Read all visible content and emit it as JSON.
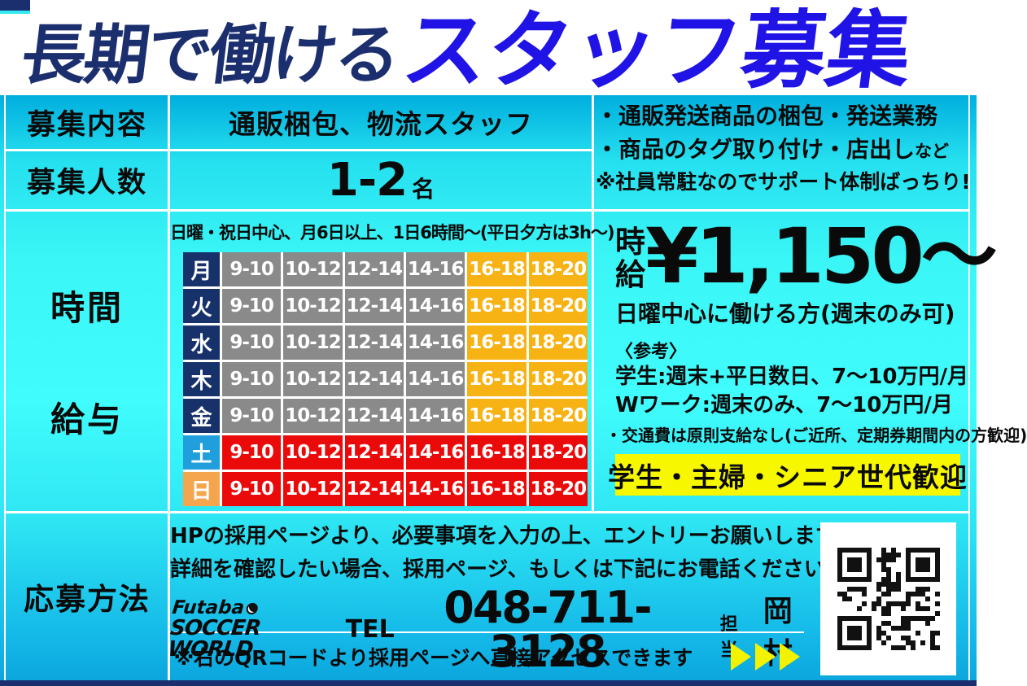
{
  "title": {
    "part1": "長期で働ける",
    "part2": "スタッフ募集"
  },
  "colors": {
    "title_navy": "#1b2e6e",
    "title_blue": "#2013e6",
    "background_top_blue": "#00aede",
    "background_cyan": "#3ffcfc",
    "day_weekday": "#17316b",
    "day_saturday": "#219fdd",
    "day_sunday": "#f5a54e",
    "slot_gray": "#8a8a8a",
    "slot_amber": "#f7b214",
    "slot_red": "#ea0a0a",
    "highlight_yellow": "#f7f700",
    "bottom_strip_navy": "#1b2e6e"
  },
  "recruit": {
    "content_label": "募集内容",
    "content_value": "通販梱包、物流スタッフ",
    "count_label": "募集人数",
    "count_value": "1-2",
    "count_unit": "名"
  },
  "duties": {
    "line1": "・通販発送商品の梱包・発送業務",
    "line2_main": "・商品のタグ取り付け・店出し",
    "line2_suffix": "など",
    "line3": "※社員常駐なのでサポート体制ばっちり!"
  },
  "schedule": {
    "label_line1": "時間",
    "label_line2": "給与",
    "note": "日曜・祝日中心、月6日以上、1日6時間〜(平日夕方は3h〜)",
    "time_slots": [
      "9-10",
      "10-12",
      "12-14",
      "14-16",
      "16-18",
      "18-20"
    ],
    "days": [
      {
        "day": "月",
        "type": "weekday"
      },
      {
        "day": "火",
        "type": "weekday"
      },
      {
        "day": "水",
        "type": "weekday"
      },
      {
        "day": "木",
        "type": "weekday"
      },
      {
        "day": "金",
        "type": "weekday"
      },
      {
        "day": "土",
        "type": "saturday"
      },
      {
        "day": "日",
        "type": "sunday"
      }
    ]
  },
  "pay": {
    "label_top": "時",
    "label_bottom": "給",
    "amount": "¥1,150〜",
    "condition": "日曜中心に働ける方(週末のみ可)",
    "reference_title": "〈参考〉",
    "reference1": "学生:週末+平日数日、7〜10万円/月",
    "reference2": "Wワーク:週末のみ、7〜10万円/月",
    "transport_note": "・交通費は原則支給なし(ご近所、定期券期間内の方歓迎)",
    "welcome": "学生・主婦・シニア世代歓迎"
  },
  "apply": {
    "label": "応募方法",
    "line1": "HPの採用ページより、必要事項を入力の上、エントリーお願いします",
    "line2": "詳細を確認したい場合、採用ページ、もしくは下記にお電話ください",
    "logo_line1": "Futaba",
    "logo_line2": "SOCCER WORLD",
    "tel_label": "TEL",
    "tel_number": "048-711-3128",
    "contact_label": "担当",
    "contact_name": "岡村",
    "qr_note": "※右のQRコードより採用ページへ直接アクセスできます"
  }
}
